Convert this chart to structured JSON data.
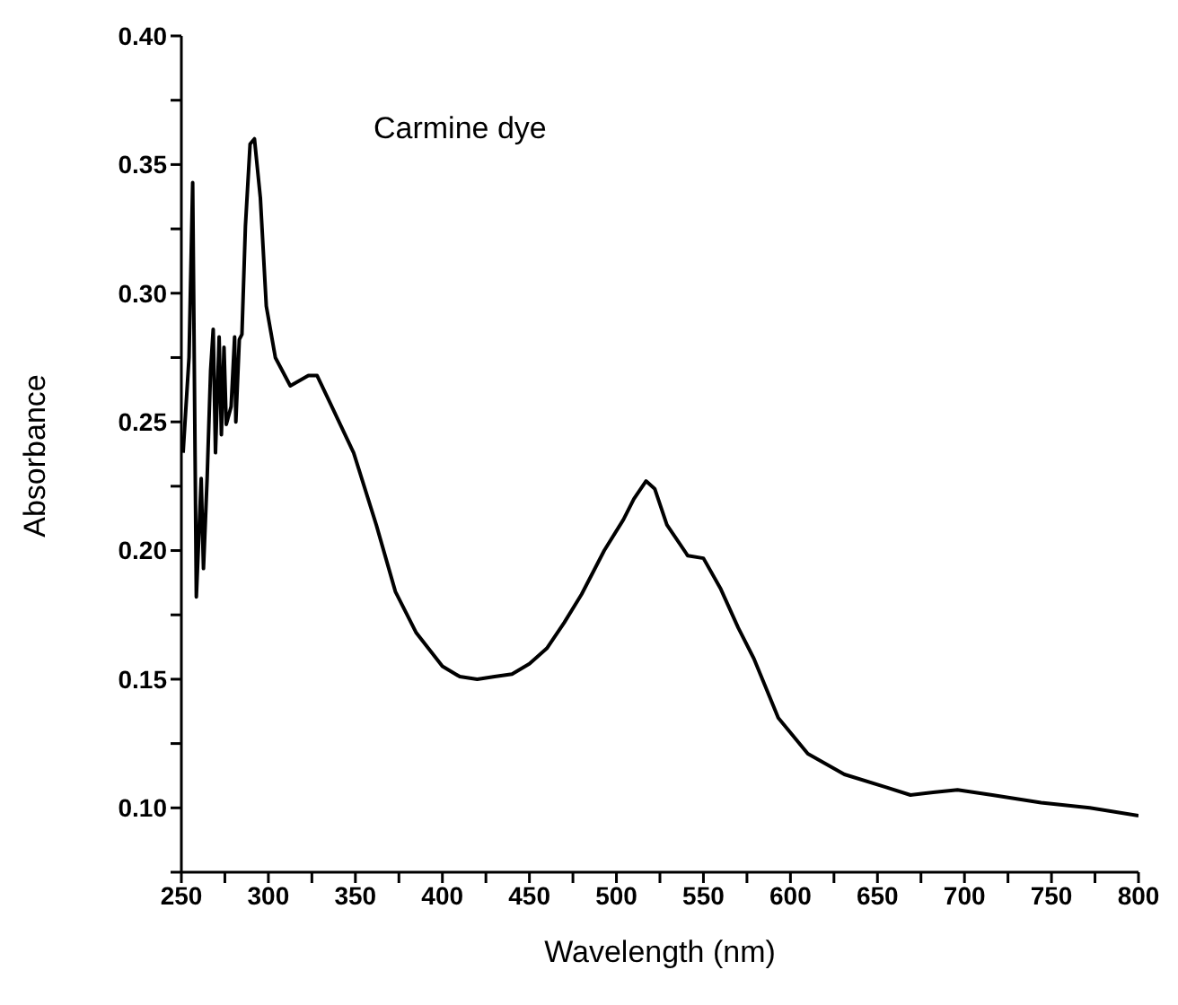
{
  "chart_data": {
    "type": "line",
    "title": "Carmine dye",
    "xlabel": "Wavelength (nm)",
    "ylabel": "Absorbance",
    "xlim": [
      250,
      800
    ],
    "ylim": [
      0.075,
      0.4
    ],
    "xticks": [
      250,
      {
        "value": 275,
        "label": null
      },
      300,
      {
        "value": 325,
        "label": null
      },
      350,
      {
        "value": 375,
        "label": null
      },
      400,
      {
        "value": 425,
        "label": null
      },
      450,
      {
        "value": 475,
        "label": null
      },
      500,
      {
        "value": 525,
        "label": null
      },
      550,
      {
        "value": 575,
        "label": null
      },
      600,
      {
        "value": 625,
        "label": null
      },
      650,
      {
        "value": 675,
        "label": null
      },
      700,
      {
        "value": 725,
        "label": null
      },
      750,
      {
        "value": 775,
        "label": null
      },
      800
    ],
    "yticks": [
      {
        "value": 0.075,
        "label": null
      },
      {
        "value": 0.1,
        "label": "0.10"
      },
      {
        "value": 0.125,
        "label": null
      },
      {
        "value": 0.15,
        "label": "0.15"
      },
      {
        "value": 0.175,
        "label": null
      },
      {
        "value": 0.2,
        "label": "0.20"
      },
      {
        "value": 0.225,
        "label": null
      },
      {
        "value": 0.25,
        "label": "0.25"
      },
      {
        "value": 0.275,
        "label": null
      },
      {
        "value": 0.3,
        "label": "0.30"
      },
      {
        "value": 0.325,
        "label": null
      },
      {
        "value": 0.35,
        "label": "0.35"
      },
      {
        "value": 0.375,
        "label": null
      },
      {
        "value": 0.4,
        "label": "0.40"
      }
    ],
    "grid": false,
    "legend": false,
    "marker": "none",
    "line_style": "solid",
    "x": [
      251,
      254.4,
      256.5,
      258.6,
      261.4,
      262.7,
      264.8,
      266.8,
      268.3,
      269.6,
      271.7,
      273,
      274.5,
      275.8,
      278.6,
      280.6,
      281.3,
      283.3,
      284.8,
      286.8,
      289.5,
      292,
      295.4,
      298.8,
      304,
      312.6,
      323,
      328,
      335,
      349,
      362,
      373,
      385,
      400,
      410,
      420,
      430,
      440,
      450,
      460,
      470,
      480,
      493,
      504,
      510,
      517,
      522,
      529,
      541,
      550,
      560,
      570,
      579,
      593,
      610,
      631,
      655,
      669,
      682,
      696,
      716,
      744,
      772,
      800
    ],
    "series": [
      {
        "color": "#000000",
        "values": [
          0.238,
          0.275,
          0.343,
          0.182,
          0.228,
          0.193,
          0.228,
          0.27,
          0.286,
          0.238,
          0.283,
          0.245,
          0.279,
          0.249,
          0.256,
          0.283,
          0.25,
          0.282,
          0.284,
          0.326,
          0.358,
          0.36,
          0.337,
          0.295,
          0.275,
          0.264,
          0.268,
          0.268,
          0.258,
          0.238,
          0.21,
          0.184,
          0.168,
          0.155,
          0.151,
          0.15,
          0.151,
          0.152,
          0.156,
          0.162,
          0.172,
          0.183,
          0.2,
          0.212,
          0.22,
          0.227,
          0.224,
          0.21,
          0.198,
          0.197,
          0.185,
          0.17,
          0.158,
          0.135,
          0.121,
          0.113,
          0.108,
          0.105,
          0.106,
          0.107,
          0.105,
          0.102,
          0.1,
          0.097
        ]
      }
    ]
  }
}
